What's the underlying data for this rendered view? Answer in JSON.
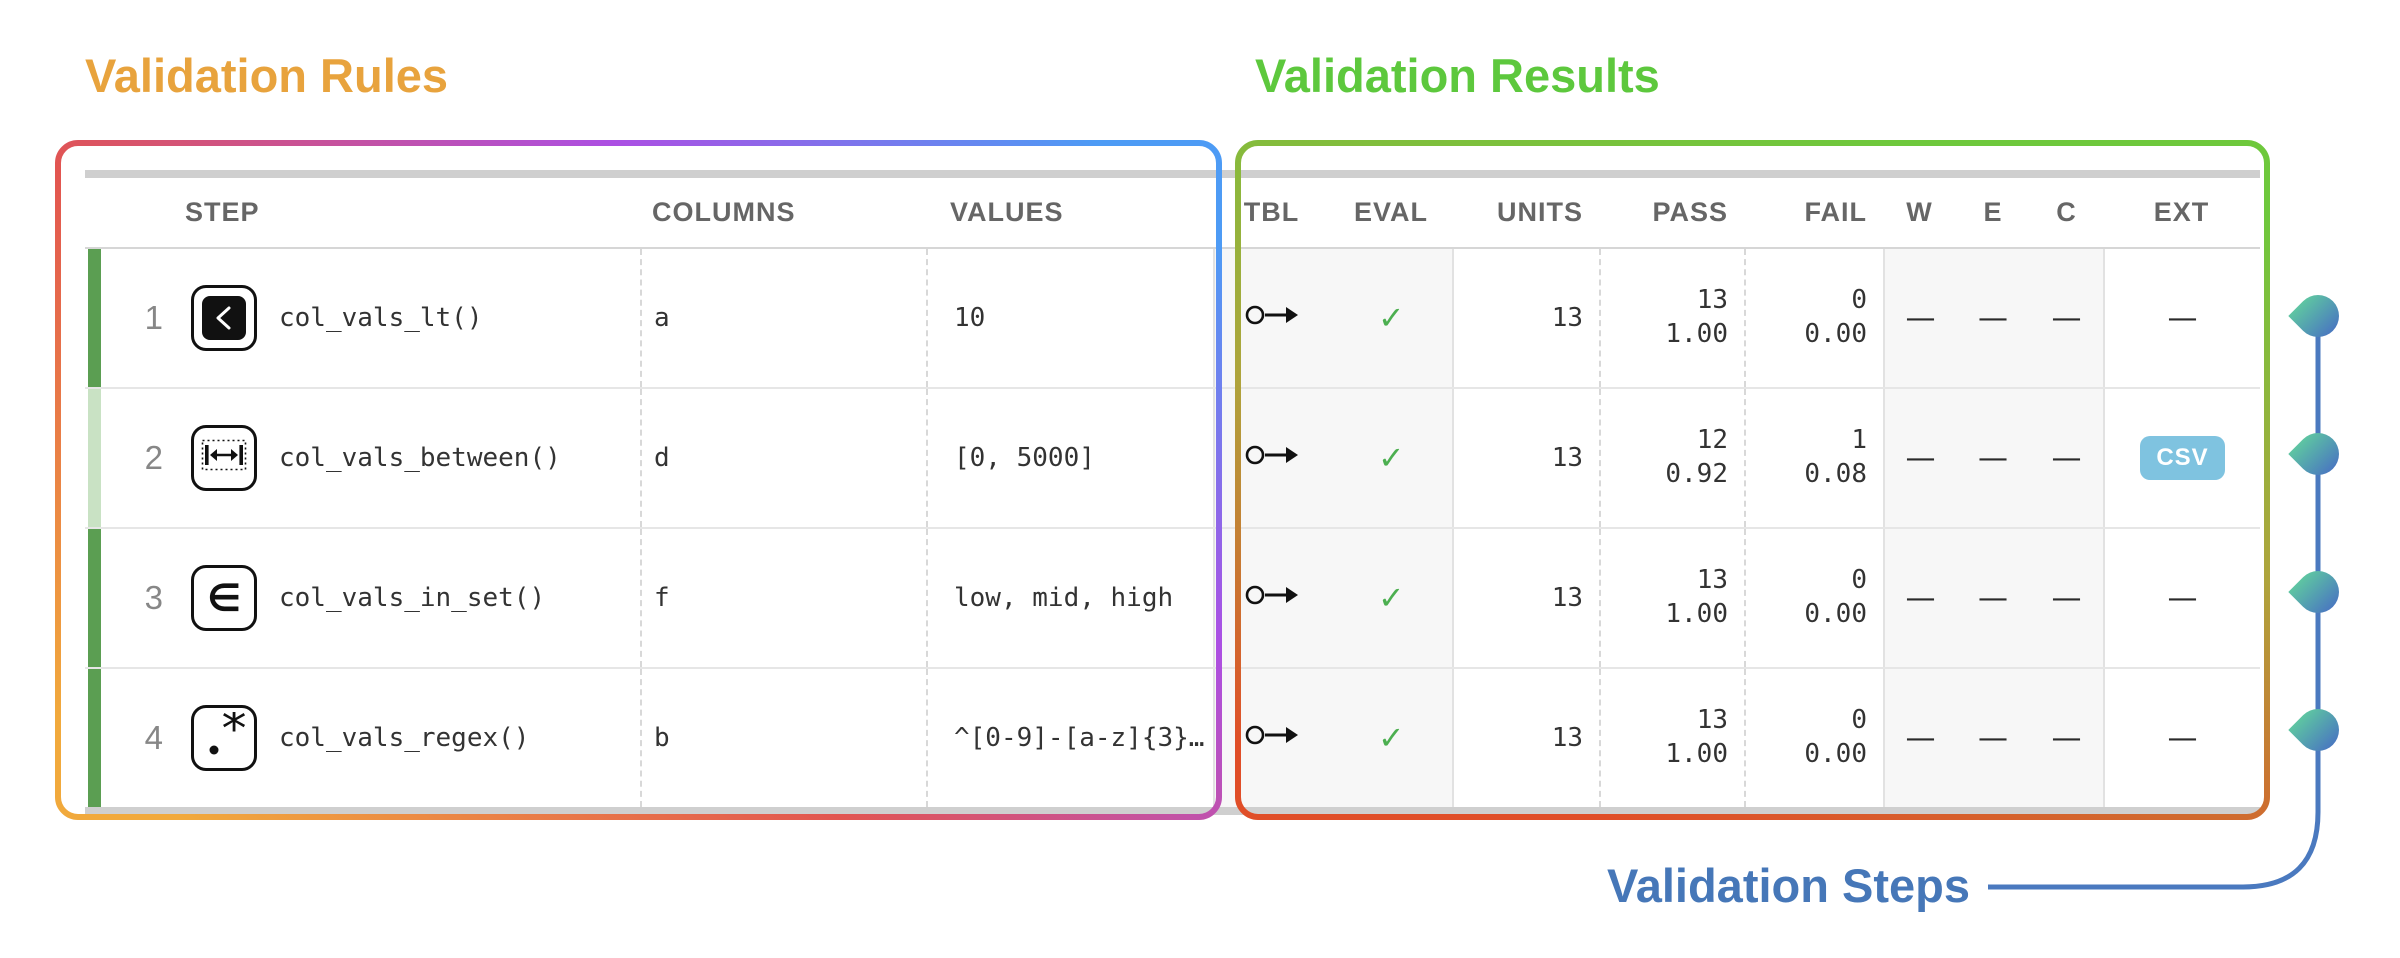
{
  "labels": {
    "rules_title": "Validation Rules",
    "results_title": "Validation Results",
    "steps_title": "Validation Steps"
  },
  "colors": {
    "rules_title": "#E8A33D",
    "results_title": "#5DC83D",
    "steps_title": "#4677B8",
    "connector_line": "#4A79BF",
    "gem_top": "#5EC5A2",
    "gem_bottom": "#4A79BF",
    "box_left_stop1": "#F1A93C",
    "box_left_stop2": "#E25550",
    "box_left_stop3": "#AC4FE3",
    "box_left_stop4": "#4D9BF5",
    "box_right_stop1": "#6EC83C",
    "box_right_stop2": "#AFA43C",
    "box_right_stop3": "#E04E28",
    "strip_full": "#5B9E52",
    "strip_partial": "#C9E2C4",
    "check_green": "#4CAF50",
    "csv_bg": "#7FC3E0"
  },
  "table": {
    "headers": [
      "STEP",
      "COLUMNS",
      "VALUES",
      "TBL",
      "EVAL",
      "UNITS",
      "PASS",
      "FAIL",
      "W",
      "E",
      "C",
      "EXT"
    ],
    "tbl_icon": "circle-arrow-icon",
    "eval_check": "✓",
    "na_dash": "—",
    "rows": [
      {
        "step": "1",
        "icon": "lt-icon",
        "fn": "col_vals_lt()",
        "columns": "a",
        "values": "10",
        "units": "13",
        "pass_n": "13",
        "pass_f": "1.00",
        "fail_n": "0",
        "fail_f": "0.00",
        "w": "—",
        "e": "—",
        "c": "—",
        "ext": "—",
        "ext_type": "dash",
        "strip": "full"
      },
      {
        "step": "2",
        "icon": "between-icon",
        "fn": "col_vals_between()",
        "columns": "d",
        "values": "[0, 5000]",
        "units": "13",
        "pass_n": "12",
        "pass_f": "0.92",
        "fail_n": "1",
        "fail_f": "0.08",
        "w": "—",
        "e": "—",
        "c": "—",
        "ext": "CSV",
        "ext_type": "button",
        "strip": "partial"
      },
      {
        "step": "3",
        "icon": "in-set-icon",
        "fn": "col_vals_in_set()",
        "columns": "f",
        "values": "low, mid, high",
        "units": "13",
        "pass_n": "13",
        "pass_f": "1.00",
        "fail_n": "0",
        "fail_f": "0.00",
        "w": "—",
        "e": "—",
        "c": "—",
        "ext": "—",
        "ext_type": "dash",
        "strip": "full"
      },
      {
        "step": "4",
        "icon": "regex-icon",
        "fn": "col_vals_regex()",
        "columns": "b",
        "values": "^[0-9]-[a-z]{3}…",
        "units": "13",
        "pass_n": "13",
        "pass_f": "1.00",
        "fail_n": "0",
        "fail_f": "0.00",
        "w": "—",
        "e": "—",
        "c": "—",
        "ext": "—",
        "ext_type": "dash",
        "strip": "full"
      }
    ]
  }
}
